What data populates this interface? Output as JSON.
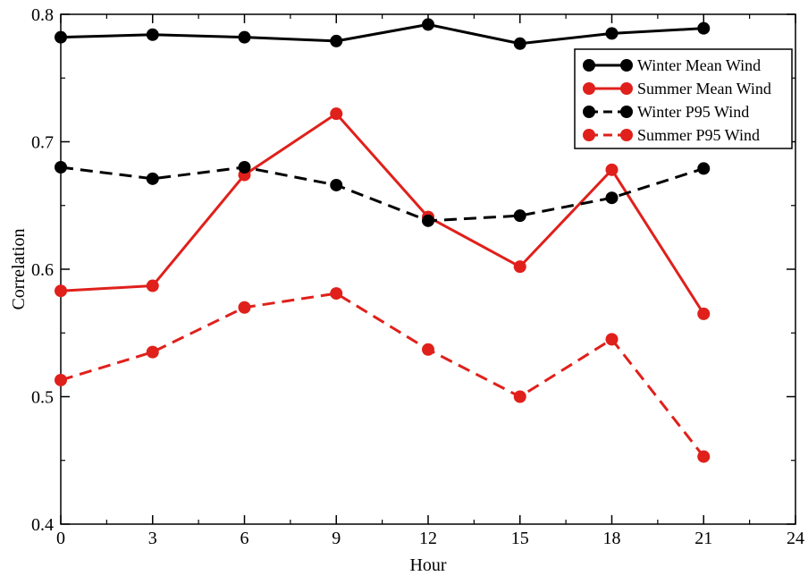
{
  "chart_data": {
    "type": "line",
    "title": "",
    "xlabel": "Hour",
    "ylabel": "Correlation",
    "xlim": [
      0,
      24
    ],
    "ylim": [
      0.4,
      0.8
    ],
    "xticks": [
      "0",
      "3",
      "6",
      "9",
      "12",
      "15",
      "18",
      "21",
      "24"
    ],
    "yticks": [
      "0.4",
      "0.5",
      "0.6",
      "0.7",
      "0.8"
    ],
    "x": [
      0,
      3,
      6,
      9,
      12,
      15,
      18,
      21
    ],
    "legend_position": "top-right",
    "grid": false,
    "series": [
      {
        "name": "Winter Mean Wind",
        "color": "#000000",
        "dashed": false,
        "values": [
          0.782,
          0.784,
          0.782,
          0.779,
          0.792,
          0.777,
          0.785,
          0.789
        ]
      },
      {
        "name": "Summer Mean Wind",
        "color": "#e0201b",
        "dashed": false,
        "values": [
          0.583,
          0.587,
          0.674,
          0.722,
          0.641,
          0.602,
          0.678,
          0.565
        ]
      },
      {
        "name": "Winter P95 Wind",
        "color": "#000000",
        "dashed": true,
        "values": [
          0.68,
          0.671,
          0.68,
          0.666,
          0.638,
          0.642,
          0.656,
          0.679
        ]
      },
      {
        "name": "Summer P95 Wind",
        "color": "#e0201b",
        "dashed": true,
        "values": [
          0.513,
          0.535,
          0.57,
          0.581,
          0.537,
          0.5,
          0.545,
          0.453
        ]
      }
    ]
  }
}
